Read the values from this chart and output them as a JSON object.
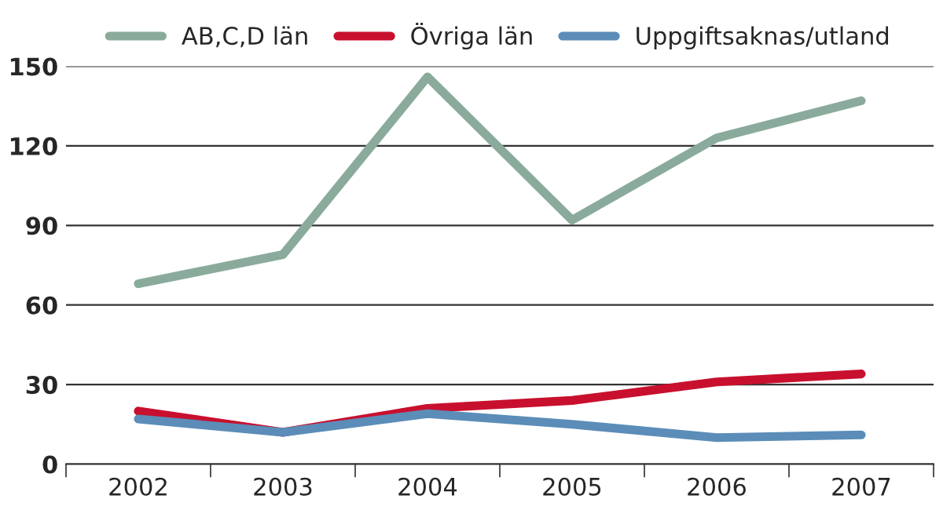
{
  "chart_data": {
    "type": "line",
    "categories": [
      "2002",
      "2003",
      "2004",
      "2005",
      "2006",
      "2007"
    ],
    "series": [
      {
        "name": "AB,C,D län",
        "color": "#8aab9c",
        "values": [
          68,
          79,
          146,
          92,
          123,
          137
        ]
      },
      {
        "name": "Övriga län",
        "color": "#c8102e",
        "values": [
          20,
          12,
          21,
          24,
          31,
          34
        ]
      },
      {
        "name": "Uppgiftsaknas/utland",
        "color": "#5b8db8",
        "values": [
          17,
          12,
          19,
          15,
          10,
          11
        ]
      }
    ],
    "ylim": [
      0,
      150
    ],
    "yticks": [
      0,
      30,
      60,
      90,
      120,
      150
    ],
    "grid": "y",
    "legend": "top",
    "line_style": "solid",
    "marker": "none"
  }
}
